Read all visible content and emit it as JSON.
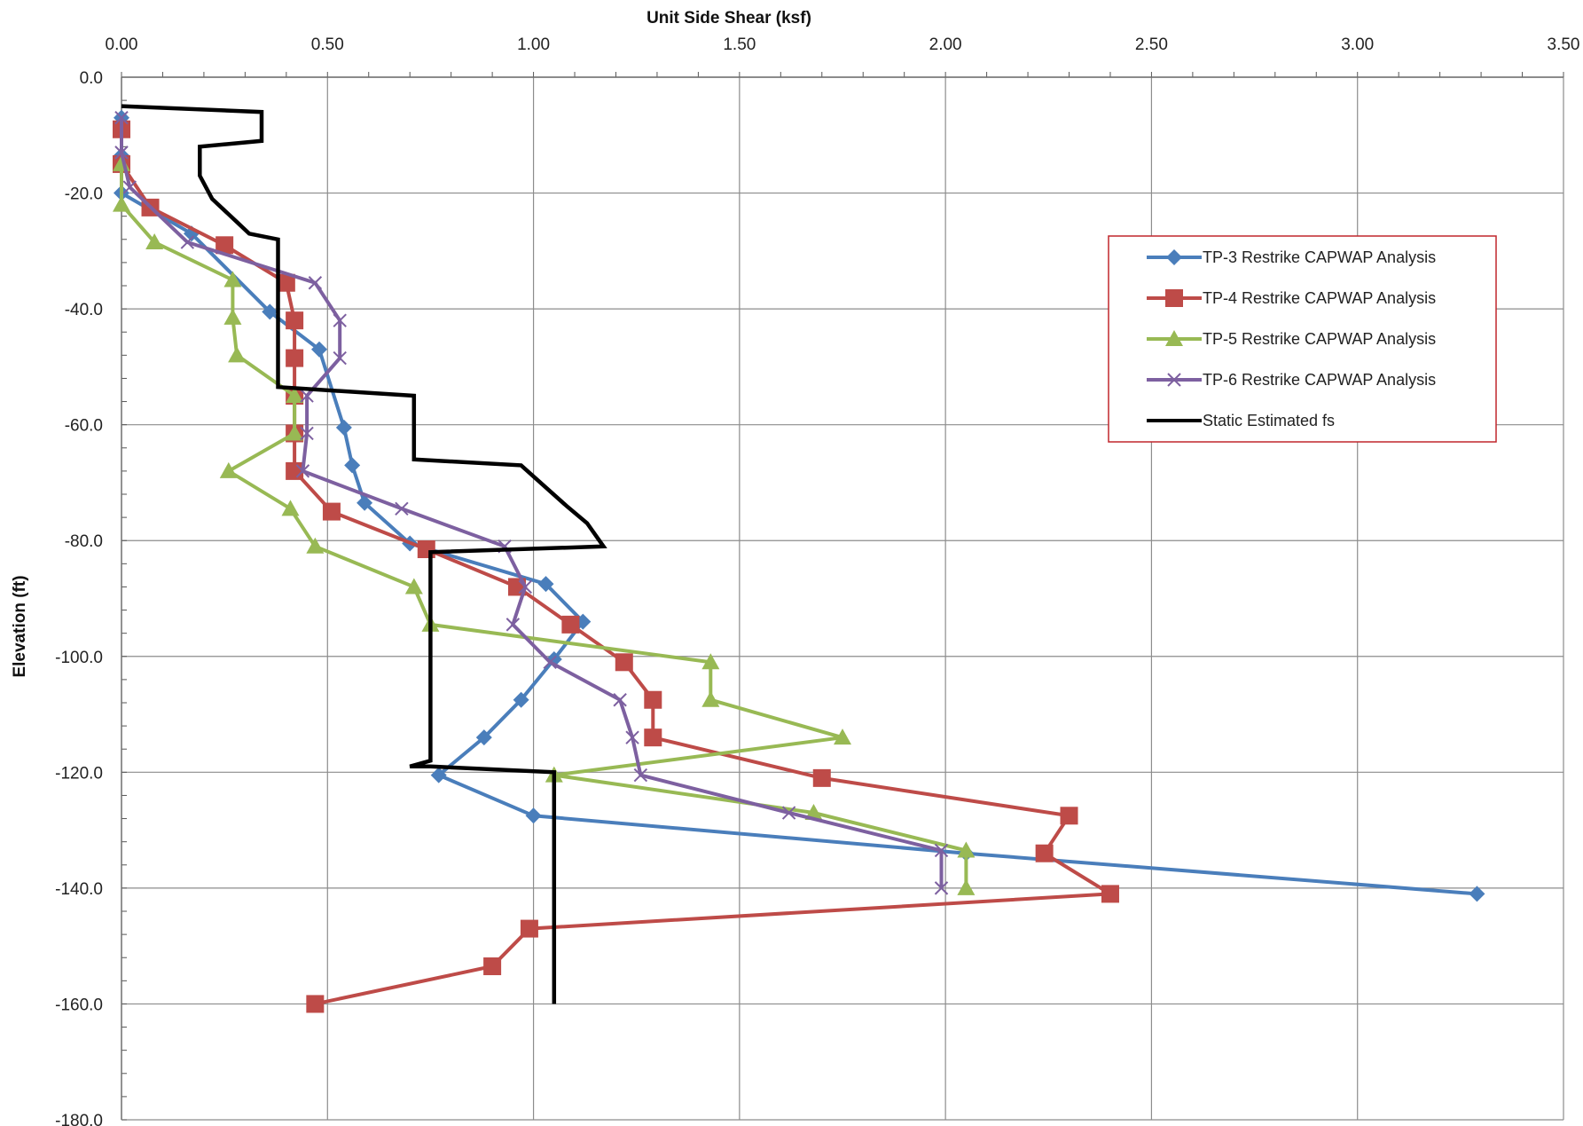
{
  "chart_data": {
    "type": "line",
    "title": "",
    "xlabel": "Unit Side Shear (ksf)",
    "ylabel": "Elevation (ft)",
    "xlim": [
      0,
      3.5
    ],
    "ylim": [
      -180,
      0
    ],
    "x_ticks": [
      "0.00",
      "0.50",
      "1.00",
      "1.50",
      "2.00",
      "2.50",
      "3.00",
      "3.50"
    ],
    "y_ticks": [
      "0.0",
      "-20.0",
      "-40.0",
      "-60.0",
      "-80.0",
      "-100.0",
      "-120.0",
      "-140.0",
      "-160.0",
      "-180.0"
    ],
    "x_axis_position": "top",
    "grid": true,
    "legend_position": "top-right",
    "series": [
      {
        "name": "TP-3 Restrike CAPWAP Analysis",
        "color": "#4a7ebb",
        "marker": "diamond",
        "points": [
          [
            0.0,
            -7
          ],
          [
            0.0,
            -13.5
          ],
          [
            0.0,
            -20
          ],
          [
            0.17,
            -27
          ],
          [
            0.36,
            -40.5
          ],
          [
            0.48,
            -47
          ],
          [
            0.54,
            -60.5
          ],
          [
            0.56,
            -67
          ],
          [
            0.59,
            -73.5
          ],
          [
            0.7,
            -80.5
          ],
          [
            1.03,
            -87.5
          ],
          [
            1.12,
            -94
          ],
          [
            1.05,
            -100.5
          ],
          [
            0.97,
            -107.5
          ],
          [
            0.88,
            -114
          ],
          [
            0.77,
            -120.5
          ],
          [
            1.0,
            -127.5
          ],
          [
            2.05,
            -134
          ],
          [
            3.29,
            -141
          ]
        ]
      },
      {
        "name": "TP-4 Restrike CAPWAP Analysis",
        "color": "#be4b48",
        "marker": "square",
        "points": [
          [
            0.0,
            -9
          ],
          [
            0.0,
            -15
          ],
          [
            0.07,
            -22.5
          ],
          [
            0.25,
            -29
          ],
          [
            0.4,
            -35.5
          ],
          [
            0.42,
            -42
          ],
          [
            0.42,
            -48.5
          ],
          [
            0.42,
            -55
          ],
          [
            0.42,
            -61.5
          ],
          [
            0.42,
            -68
          ],
          [
            0.51,
            -75
          ],
          [
            0.74,
            -81.5
          ],
          [
            0.96,
            -88
          ],
          [
            1.09,
            -94.5
          ],
          [
            1.22,
            -101
          ],
          [
            1.29,
            -107.5
          ],
          [
            1.29,
            -114
          ],
          [
            1.7,
            -121
          ],
          [
            2.3,
            -127.5
          ],
          [
            2.24,
            -134
          ],
          [
            2.4,
            -141
          ],
          [
            0.99,
            -147
          ],
          [
            0.9,
            -153.5
          ],
          [
            0.47,
            -160
          ]
        ]
      },
      {
        "name": "TP-5 Restrike CAPWAP Analysis",
        "color": "#98b954",
        "marker": "triangle",
        "points": [
          [
            0.0,
            -15
          ],
          [
            0.0,
            -22
          ],
          [
            0.08,
            -28.5
          ],
          [
            0.27,
            -35
          ],
          [
            0.27,
            -41.5
          ],
          [
            0.28,
            -48
          ],
          [
            0.42,
            -55
          ],
          [
            0.42,
            -61.5
          ],
          [
            0.26,
            -68
          ],
          [
            0.41,
            -74.5
          ],
          [
            0.47,
            -81
          ],
          [
            0.71,
            -88
          ],
          [
            0.75,
            -94.5
          ],
          [
            1.43,
            -101
          ],
          [
            1.43,
            -107.5
          ],
          [
            1.75,
            -114
          ],
          [
            1.05,
            -120.5
          ],
          [
            1.68,
            -127
          ],
          [
            2.05,
            -133.5
          ],
          [
            2.05,
            -140
          ]
        ]
      },
      {
        "name": "TP-6 Restrike CAPWAP Analysis",
        "color": "#7d60a0",
        "marker": "x",
        "points": [
          [
            0.0,
            -7
          ],
          [
            0.0,
            -13
          ],
          [
            0.02,
            -19
          ],
          [
            0.16,
            -28.5
          ],
          [
            0.47,
            -35.5
          ],
          [
            0.53,
            -42
          ],
          [
            0.53,
            -48.5
          ],
          [
            0.45,
            -55
          ],
          [
            0.45,
            -61.5
          ],
          [
            0.44,
            -68
          ],
          [
            0.68,
            -74.5
          ],
          [
            0.93,
            -81
          ],
          [
            0.98,
            -88
          ],
          [
            0.95,
            -94.5
          ],
          [
            1.04,
            -101
          ],
          [
            1.21,
            -107.5
          ],
          [
            1.24,
            -114
          ],
          [
            1.26,
            -120.5
          ],
          [
            1.62,
            -127
          ],
          [
            1.99,
            -133.5
          ],
          [
            1.99,
            -140
          ]
        ]
      },
      {
        "name": "Static Estimated fs",
        "color": "#000000",
        "marker": "none",
        "points": [
          [
            0.0,
            -5
          ],
          [
            0.34,
            -6
          ],
          [
            0.34,
            -11
          ],
          [
            0.19,
            -12
          ],
          [
            0.19,
            -17
          ],
          [
            0.22,
            -21
          ],
          [
            0.28,
            -25
          ],
          [
            0.31,
            -27
          ],
          [
            0.38,
            -28
          ],
          [
            0.38,
            -53.5
          ],
          [
            0.71,
            -55
          ],
          [
            0.71,
            -66
          ],
          [
            0.97,
            -67
          ],
          [
            1.08,
            -74
          ],
          [
            1.13,
            -77
          ],
          [
            1.17,
            -81
          ],
          [
            0.75,
            -82
          ],
          [
            0.75,
            -118
          ],
          [
            0.7,
            -119
          ],
          [
            0.75,
            -119
          ],
          [
            1.05,
            -120
          ],
          [
            1.05,
            -160
          ]
        ]
      }
    ]
  }
}
